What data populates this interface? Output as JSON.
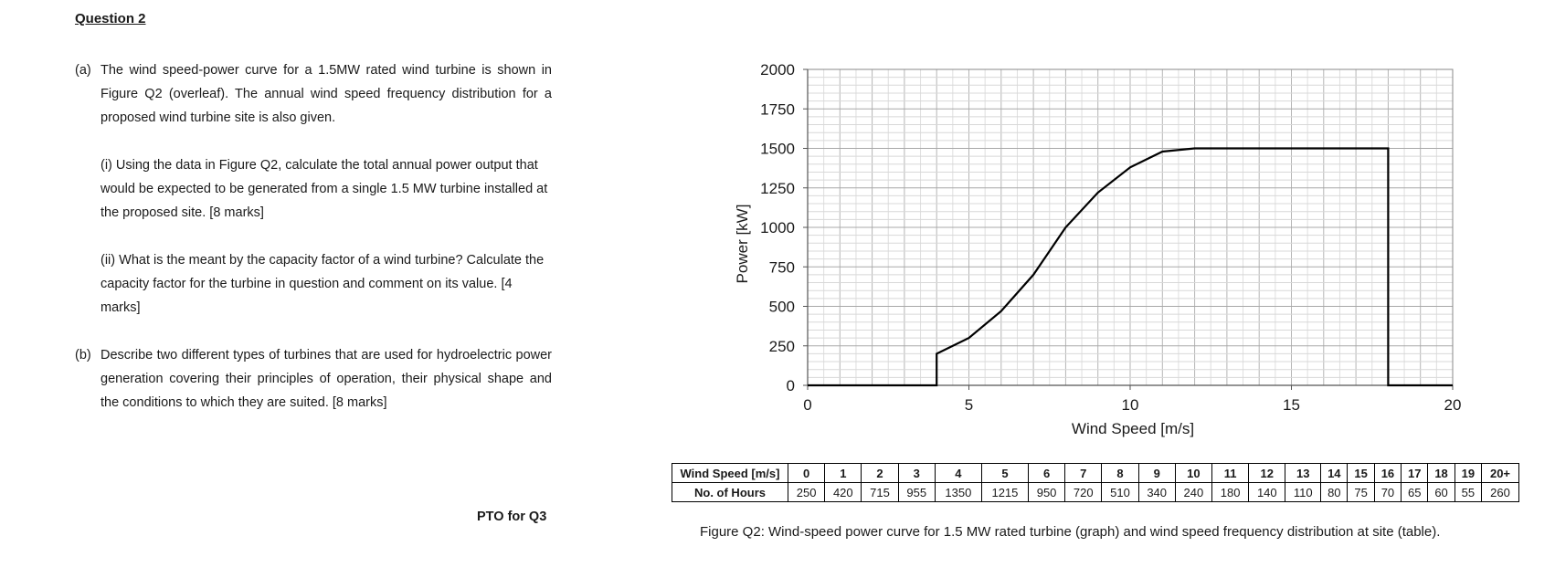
{
  "question": {
    "title": "Question 2",
    "a_marker": "(a)",
    "a_text": "The wind speed-power curve for a 1.5MW rated wind turbine is shown in Figure Q2 (overleaf). The annual wind speed frequency distribution for a proposed wind turbine site is also given.",
    "a_i_text": "(i) Using the data in Figure Q2, calculate the total annual power output that would be expected to be generated from a single 1.5 MW turbine installed at the proposed site. [8 marks]",
    "a_ii_text": "(ii) What is the meant by the capacity factor of a wind turbine? Calculate the capacity factor for the turbine in question and comment on its value. [4 marks]",
    "b_marker": "(b)",
    "b_text": "Describe two different types of turbines that are used for hydroelectric power generation covering their principles of operation, their physical shape and the conditions to which they are suited. [8 marks]",
    "pto": "PTO for Q3"
  },
  "chart_data": {
    "type": "line",
    "xlabel": "Wind Speed [m/s]",
    "ylabel": "Power [kW]",
    "xlim": [
      0,
      20
    ],
    "ylim": [
      0,
      2000
    ],
    "x_ticks": [
      0,
      5,
      10,
      15,
      20
    ],
    "y_ticks": [
      0,
      250,
      500,
      750,
      1000,
      1250,
      1500,
      1750,
      2000
    ],
    "grid": true,
    "series": [
      {
        "x": [
          0,
          4,
          4,
          5,
          6,
          7,
          8,
          9,
          10,
          11,
          12,
          13,
          14,
          15,
          16,
          17,
          18,
          18,
          20
        ],
        "y": [
          0,
          0,
          200,
          300,
          470,
          700,
          1000,
          1220,
          1380,
          1480,
          1500,
          1500,
          1500,
          1500,
          1500,
          1500,
          1500,
          0,
          0
        ]
      }
    ]
  },
  "table": {
    "row1_label": "Wind Speed [m/s]",
    "row2_label": "No. of Hours",
    "speeds": [
      "0",
      "1",
      "2",
      "3",
      "4",
      "5",
      "6",
      "7",
      "8",
      "9",
      "10",
      "11",
      "12",
      "13",
      "14",
      "15",
      "16",
      "17",
      "18",
      "19",
      "20+"
    ],
    "hours": [
      "250",
      "420",
      "715",
      "955",
      "1350",
      "1215",
      "950",
      "720",
      "510",
      "340",
      "240",
      "180",
      "140",
      "110",
      "80",
      "75",
      "70",
      "65",
      "60",
      "55",
      "260"
    ]
  },
  "caption": "Figure Q2: Wind-speed power curve for 1.5 MW rated turbine (graph) and wind speed frequency distribution at site (table)."
}
